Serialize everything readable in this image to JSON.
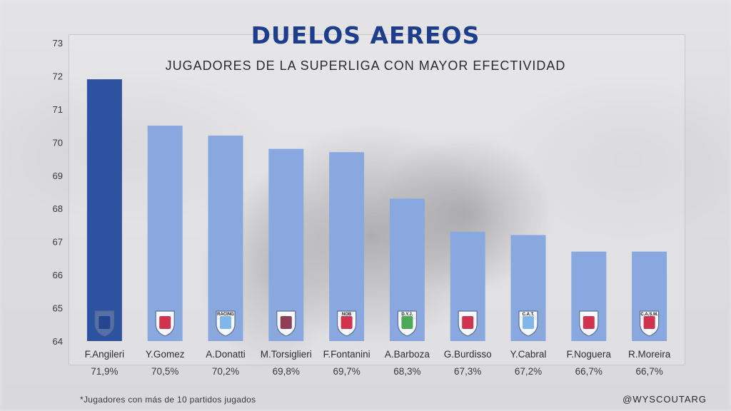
{
  "title": "DUELOS AEREOS",
  "subtitle": "JUGADORES DE LA SUPERLIGA CON MAYOR EFECTIVIDAD",
  "footnote": "*Jugadores con más de 10 partidos jugados",
  "handle": "@WYSCOUTARG",
  "colors": {
    "highlight": "#2d53a0",
    "bar": "#8aa8e0",
    "title": "#1e3d8c"
  },
  "chart_data": {
    "type": "bar",
    "title": "DUELOS AEREOS",
    "subtitle": "JUGADORES DE LA SUPERLIGA CON MAYOR EFECTIVIDAD",
    "categories": [
      "F.Angileri",
      "Y.Gomez",
      "A.Donatti",
      "M.Torsiglieri",
      "F.Fontanini",
      "A.Barboza",
      "G.Burdisso",
      "Y.Cabral",
      "F.Noguera",
      "R.Moreira"
    ],
    "values": [
      71.9,
      70.5,
      70.2,
      69.8,
      69.7,
      68.3,
      67.3,
      67.2,
      66.7,
      66.7
    ],
    "value_labels": [
      "71,9%",
      "70,5%",
      "70,2%",
      "69,8%",
      "69,7%",
      "68,3%",
      "67,3%",
      "67,2%",
      "66,7%",
      "66,7%"
    ],
    "highlight_index": 0,
    "club_badges": [
      "badge-godoy-cruz-icon",
      "badge-union-icon",
      "badge-racing-icon",
      "badge-lanus-icon",
      "badge-newells-icon",
      "badge-defensa-y-justicia-icon",
      "badge-independiente-icon",
      "badge-atletico-tucuman-icon",
      "badge-estudiantes-icon",
      "badge-san-martin-icon"
    ],
    "badge_texts": [
      "",
      "",
      "RACING",
      "",
      "NOB",
      "D.Y.J.",
      "",
      "C.A.T.",
      "",
      "C.A.S.M."
    ],
    "ylim": [
      64,
      73
    ],
    "yticks": [
      64,
      65,
      66,
      67,
      68,
      69,
      70,
      71,
      72,
      73
    ],
    "xlabel": "",
    "ylabel": "",
    "grid": false,
    "legend": "none"
  }
}
